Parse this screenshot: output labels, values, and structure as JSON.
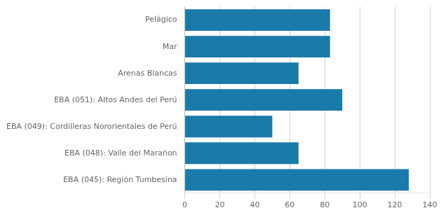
{
  "chart_data": {
    "type": "bar",
    "orientation": "horizontal",
    "categories": [
      "EBA (045): Región Tumbesina",
      "EBA (048): Valle del Marañon",
      "EBA (049): Cordilleras Nororientales de Perú",
      "EBA (051): Altos Andes del Perú",
      "Arenas Blancas",
      "Mar",
      "Pelágico"
    ],
    "values": [
      128,
      65,
      50,
      90,
      65,
      83,
      83
    ],
    "color": "#1a7aaa",
    "xlim": [
      0,
      140
    ],
    "xticks": [
      0,
      20,
      40,
      60,
      80,
      100,
      120,
      140
    ],
    "grid": true
  }
}
